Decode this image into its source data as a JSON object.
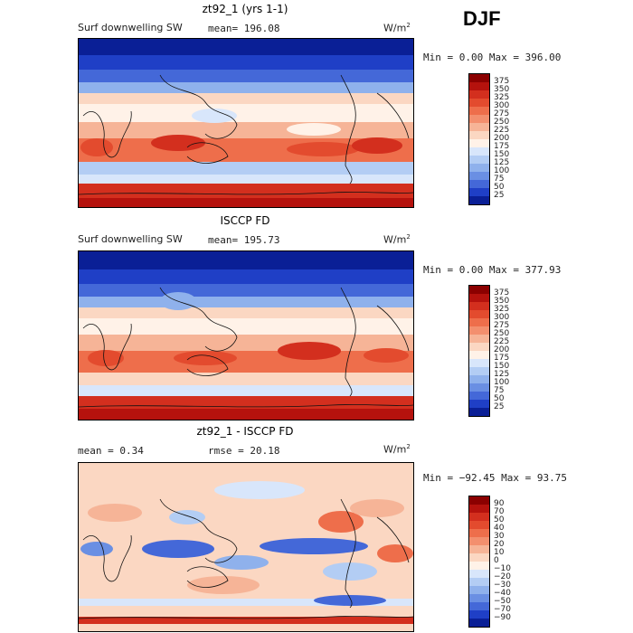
{
  "season": "DJF",
  "panels": [
    {
      "title": "zt92_1 (yrs 1-1)",
      "field": "Surf downwelling SW",
      "stat1": "mean= 196.08",
      "stat2": "",
      "units": "W/m",
      "units_sup": "2",
      "minmax": "Min =    0.00 Max = 396.00",
      "colorbar_labels": [
        "375",
        "350",
        "325",
        "300",
        "275",
        "250",
        "225",
        "200",
        "175",
        "150",
        "125",
        "100",
        "75",
        "50",
        "25"
      ],
      "colorbar_colors": [
        "#8b0000",
        "#b5120d",
        "#d32f1e",
        "#e34b2e",
        "#ee6e4b",
        "#f38f6e",
        "#f6b497",
        "#fbd7c2",
        "#fff2e8",
        "#d8e6fb",
        "#b3cdf4",
        "#8fb1ec",
        "#6a8fe3",
        "#4468d8",
        "#1f3fc6",
        "#0a1f96"
      ],
      "value_range": [
        0,
        396.0
      ],
      "mean": 196.08
    },
    {
      "title": "ISCCP FD",
      "field": "Surf downwelling SW",
      "stat1": "mean= 195.73",
      "stat2": "",
      "units": "W/m",
      "units_sup": "2",
      "minmax": "Min =    0.00 Max = 377.93",
      "colorbar_labels": [
        "375",
        "350",
        "325",
        "300",
        "275",
        "250",
        "225",
        "200",
        "175",
        "150",
        "125",
        "100",
        "75",
        "50",
        "25"
      ],
      "colorbar_colors": [
        "#8b0000",
        "#b5120d",
        "#d32f1e",
        "#e34b2e",
        "#ee6e4b",
        "#f38f6e",
        "#f6b497",
        "#fbd7c2",
        "#fff2e8",
        "#d8e6fb",
        "#b3cdf4",
        "#8fb1ec",
        "#6a8fe3",
        "#4468d8",
        "#1f3fc6",
        "#0a1f96"
      ],
      "value_range": [
        0,
        377.93
      ],
      "mean": 195.73
    },
    {
      "title": "zt92_1 - ISCCP FD",
      "field": "",
      "stat1": "mean =   0.34",
      "stat2": "rmse =  20.18",
      "units": "W/m",
      "units_sup": "2",
      "minmax": "Min = −92.45 Max =  93.75",
      "colorbar_labels": [
        "90",
        "70",
        "50",
        "40",
        "30",
        "20",
        "10",
        "0",
        "−10",
        "−20",
        "−30",
        "−40",
        "−50",
        "−70",
        "−90"
      ],
      "colorbar_colors": [
        "#8b0000",
        "#b5120d",
        "#d32f1e",
        "#e34b2e",
        "#ee6e4b",
        "#f38f6e",
        "#f6b497",
        "#fbd7c2",
        "#fff2e8",
        "#d8e6fb",
        "#b3cdf4",
        "#8fb1ec",
        "#6a8fe3",
        "#4468d8",
        "#1f3fc6",
        "#0a1f96"
      ],
      "value_range": [
        -92.45,
        93.75
      ],
      "mean": 0.34,
      "rmse": 20.18
    }
  ]
}
